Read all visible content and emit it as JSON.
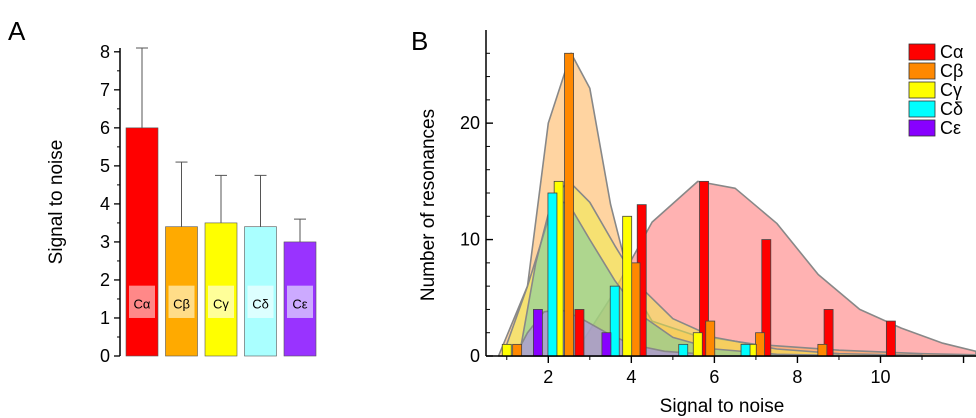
{
  "chart_data": [
    {
      "panel": "A",
      "type": "bar",
      "categories": [
        "Cα",
        "Cβ",
        "Cγ",
        "Cδ",
        "Cε"
      ],
      "values": [
        6.0,
        3.4,
        3.5,
        3.4,
        3.0
      ],
      "error": [
        2.1,
        1.7,
        1.25,
        1.35,
        0.6
      ],
      "colors": [
        "#ff0000",
        "#ffaa00",
        "#ffff00",
        "#aaffff",
        "#9933ff"
      ],
      "label_box_colors": [
        "#ff8888",
        "#ffdd88",
        "#ffff99",
        "#ddffff",
        "#ccaaff"
      ],
      "ylabel": "Signal to noise",
      "ylim": [
        0,
        8.1
      ],
      "yticks": [
        0,
        1,
        2,
        3,
        4,
        5,
        6,
        7,
        8
      ],
      "grid": false
    },
    {
      "panel": "B",
      "type": "bar",
      "xlabel": "Signal to noise",
      "ylabel": "Number of resonances",
      "xlim": [
        0.5,
        12.3
      ],
      "ylim": [
        0,
        28
      ],
      "xticks": [
        2,
        4,
        6,
        8,
        10
      ],
      "yticks": [
        0,
        10,
        20
      ],
      "grid": false,
      "legend": "top-right",
      "series": [
        {
          "name": "Cα",
          "color": "#ff0000",
          "curve_color": "#ff6666",
          "points": [
            [
              2.75,
              4
            ],
            [
              4.25,
              13
            ],
            [
              5.75,
              15
            ],
            [
              7.25,
              10
            ],
            [
              8.75,
              4
            ],
            [
              10.25,
              3
            ]
          ],
          "curve": [
            [
              2.6,
              0
            ],
            [
              3.5,
              5
            ],
            [
              4.5,
              11.5
            ],
            [
              5.6,
              15
            ],
            [
              6.5,
              14.4
            ],
            [
              7.5,
              11.4
            ],
            [
              8.5,
              7
            ],
            [
              9.5,
              4
            ],
            [
              10.5,
              2.4
            ],
            [
              11.5,
              1.1
            ],
            [
              12.3,
              0.4
            ]
          ]
        },
        {
          "name": "Cβ",
          "color": "#ff8800",
          "curve_color": "#ffaa44",
          "points": [
            [
              1.25,
              1
            ],
            [
              2.5,
              26
            ],
            [
              4.1,
              8
            ],
            [
              5.9,
              3
            ],
            [
              7.1,
              2
            ],
            [
              8.6,
              1
            ]
          ],
          "curve": [
            [
              0.8,
              0
            ],
            [
              1.5,
              6
            ],
            [
              2.0,
              20
            ],
            [
              2.55,
              26
            ],
            [
              3.0,
              23
            ],
            [
              3.5,
              13
            ],
            [
              4.0,
              6
            ],
            [
              4.5,
              3
            ],
            [
              5.5,
              1.8
            ],
            [
              7.0,
              1
            ],
            [
              9.0,
              0.5
            ],
            [
              11.0,
              0.2
            ],
            [
              12.3,
              0.1
            ]
          ]
        },
        {
          "name": "Cγ",
          "color": "#ffff00",
          "curve_color": "#eeee44",
          "points": [
            [
              1.0,
              1
            ],
            [
              2.25,
              15
            ],
            [
              3.9,
              12
            ],
            [
              5.6,
              2
            ],
            [
              6.9,
              1
            ]
          ],
          "curve": [
            [
              0.9,
              0
            ],
            [
              1.5,
              6
            ],
            [
              2.2,
              14
            ],
            [
              2.5,
              15
            ],
            [
              3.0,
              13.2
            ],
            [
              3.6,
              9.5
            ],
            [
              4.2,
              6
            ],
            [
              5.0,
              3.2
            ],
            [
              6.0,
              1.6
            ],
            [
              7.5,
              0.6
            ],
            [
              9.0,
              0.2
            ],
            [
              11.0,
              0.05
            ]
          ]
        },
        {
          "name": "Cδ",
          "color": "#00ffff",
          "curve_color": "#66ccaa",
          "points": [
            [
              2.1,
              14
            ],
            [
              3.6,
              6
            ],
            [
              5.25,
              1
            ],
            [
              6.75,
              1
            ]
          ],
          "curve": [
            [
              1.3,
              0
            ],
            [
              1.7,
              8
            ],
            [
              2.1,
              13.6
            ],
            [
              2.5,
              13
            ],
            [
              3.0,
              10
            ],
            [
              3.6,
              6.5
            ],
            [
              4.2,
              3.6
            ],
            [
              5.0,
              1.6
            ],
            [
              6.0,
              0.6
            ],
            [
              7.5,
              0.15
            ],
            [
              9.0,
              0.05
            ]
          ]
        },
        {
          "name": "Cε",
          "color": "#8800ff",
          "curve_color": "#aa77ff",
          "points": [
            [
              1.75,
              4
            ],
            [
              3.4,
              2
            ]
          ],
          "curve": [
            [
              1.2,
              0
            ],
            [
              1.5,
              2
            ],
            [
              1.9,
              3.8
            ],
            [
              2.3,
              4
            ],
            [
              2.8,
              3.2
            ],
            [
              3.4,
              2
            ],
            [
              4.0,
              1
            ],
            [
              4.8,
              0.4
            ],
            [
              6.0,
              0.1
            ]
          ]
        }
      ]
    }
  ]
}
